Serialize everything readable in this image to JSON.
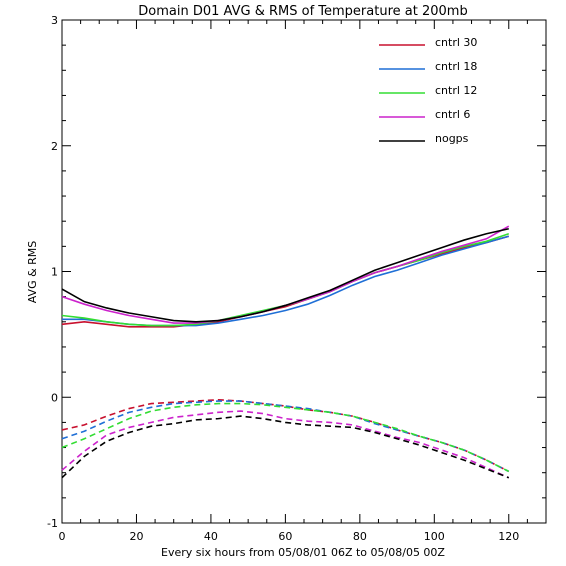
{
  "chart_data": {
    "type": "line",
    "title": "Domain D01 AVG & RMS of Temperature at 200mb",
    "xlabel": "Every six hours from 05/08/01 06Z to 05/08/05 00Z",
    "ylabel": "AVG & RMS",
    "xlim": [
      0,
      130
    ],
    "ylim": [
      -1,
      3
    ],
    "xticks": [
      0,
      20,
      40,
      60,
      80,
      100,
      120
    ],
    "yticks": [
      -1,
      0,
      1,
      2,
      3
    ],
    "legend_position": "top-right",
    "x": [
      0,
      6,
      12,
      18,
      24,
      30,
      36,
      42,
      48,
      54,
      60,
      66,
      72,
      78,
      84,
      90,
      96,
      102,
      108,
      114,
      120
    ],
    "series": [
      {
        "name": "cntrl 30",
        "color": "#c8102e",
        "rms": [
          0.58,
          0.6,
          0.58,
          0.56,
          0.56,
          0.56,
          0.58,
          0.6,
          0.64,
          0.68,
          0.72,
          0.78,
          0.84,
          0.92,
          0.99,
          1.04,
          1.09,
          1.14,
          1.19,
          1.23,
          1.28
        ],
        "avg": [
          -0.26,
          -0.22,
          -0.15,
          -0.09,
          -0.05,
          -0.04,
          -0.03,
          -0.02,
          -0.03,
          -0.05,
          -0.07,
          -0.1,
          -0.12,
          -0.15,
          -0.2,
          -0.26,
          -0.31,
          -0.36,
          -0.42,
          -0.5,
          -0.59
        ]
      },
      {
        "name": "cntrl 18",
        "color": "#1f6fd6",
        "rms": [
          0.62,
          0.62,
          0.6,
          0.58,
          0.57,
          0.57,
          0.57,
          0.59,
          0.62,
          0.65,
          0.69,
          0.74,
          0.81,
          0.89,
          0.96,
          1.01,
          1.07,
          1.13,
          1.18,
          1.23,
          1.28
        ],
        "avg": [
          -0.33,
          -0.27,
          -0.19,
          -0.12,
          -0.08,
          -0.05,
          -0.04,
          -0.03,
          -0.03,
          -0.05,
          -0.07,
          -0.09,
          -0.12,
          -0.15,
          -0.21,
          -0.26,
          -0.31,
          -0.36,
          -0.42,
          -0.5,
          -0.59
        ]
      },
      {
        "name": "cntrl 12",
        "color": "#33dd33",
        "rms": [
          0.65,
          0.63,
          0.6,
          0.58,
          0.57,
          0.57,
          0.58,
          0.61,
          0.65,
          0.69,
          0.73,
          0.78,
          0.84,
          0.92,
          0.99,
          1.04,
          1.09,
          1.15,
          1.2,
          1.24,
          1.3
        ],
        "avg": [
          -0.4,
          -0.33,
          -0.25,
          -0.17,
          -0.11,
          -0.08,
          -0.06,
          -0.05,
          -0.05,
          -0.06,
          -0.08,
          -0.1,
          -0.12,
          -0.15,
          -0.2,
          -0.25,
          -0.31,
          -0.36,
          -0.42,
          -0.5,
          -0.59
        ]
      },
      {
        "name": "cntrl 6",
        "color": "#cc22cc",
        "rms": [
          0.8,
          0.74,
          0.69,
          0.65,
          0.62,
          0.59,
          0.59,
          0.61,
          0.64,
          0.68,
          0.73,
          0.78,
          0.84,
          0.92,
          0.99,
          1.04,
          1.1,
          1.16,
          1.21,
          1.26,
          1.36
        ],
        "avg": [
          -0.58,
          -0.43,
          -0.3,
          -0.24,
          -0.2,
          -0.16,
          -0.14,
          -0.12,
          -0.11,
          -0.13,
          -0.17,
          -0.19,
          -0.2,
          -0.22,
          -0.27,
          -0.32,
          -0.36,
          -0.42,
          -0.48,
          -0.56,
          -0.64
        ]
      },
      {
        "name": "nogps",
        "color": "#000000",
        "rms": [
          0.86,
          0.76,
          0.71,
          0.67,
          0.64,
          0.61,
          0.6,
          0.61,
          0.64,
          0.68,
          0.73,
          0.79,
          0.85,
          0.93,
          1.01,
          1.07,
          1.13,
          1.19,
          1.25,
          1.3,
          1.34
        ],
        "avg": [
          -0.64,
          -0.47,
          -0.35,
          -0.28,
          -0.23,
          -0.21,
          -0.18,
          -0.17,
          -0.15,
          -0.17,
          -0.2,
          -0.22,
          -0.23,
          -0.24,
          -0.28,
          -0.33,
          -0.38,
          -0.44,
          -0.5,
          -0.57,
          -0.64
        ]
      }
    ]
  }
}
